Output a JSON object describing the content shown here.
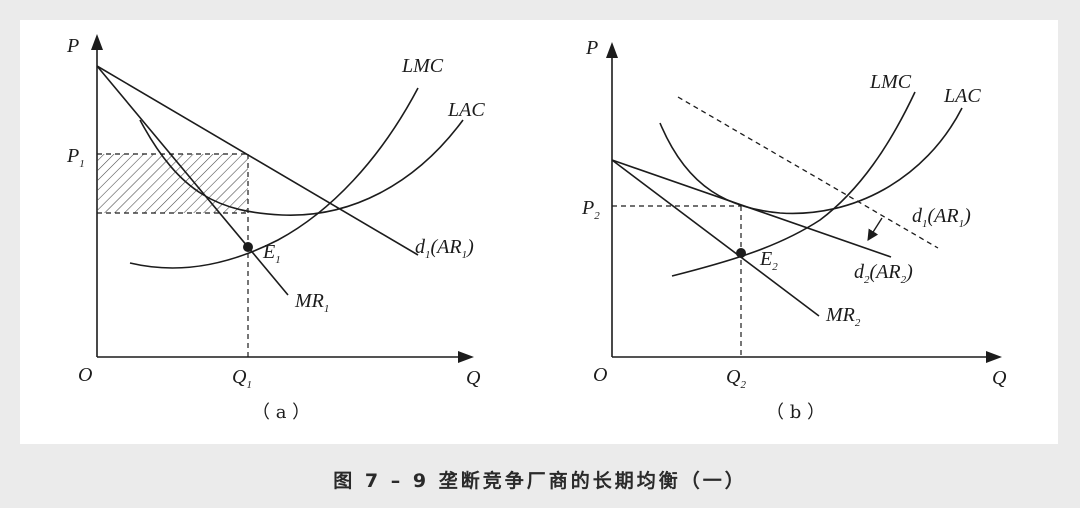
{
  "caption": "图 7 – 9   垄断竞争厂商的长期均衡（一）",
  "panel_a": {
    "sublabel": "（ a ）",
    "y_axis": "P",
    "x_axis": "Q",
    "origin": "O",
    "p_label": {
      "main": "P",
      "sub": "1"
    },
    "q_label": {
      "main": "Q",
      "sub": "1"
    },
    "lmc": "LMC",
    "lac": "LAC",
    "e_label": {
      "main": "E",
      "sub": "1"
    },
    "mr_label": {
      "main": "MR",
      "sub": "1"
    },
    "d_label": {
      "pre": "d",
      "pre_sub": "1",
      "mid": "(",
      "ar": "AR",
      "ar_sub": "1",
      "post": ")"
    }
  },
  "panel_b": {
    "sublabel": "（ b ）",
    "y_axis": "P",
    "x_axis": "Q",
    "origin": "O",
    "p_label": {
      "main": "P",
      "sub": "2"
    },
    "q_label": {
      "main": "Q",
      "sub": "2"
    },
    "lmc": "LMC",
    "lac": "LAC",
    "e_label": {
      "main": "E",
      "sub": "2"
    },
    "mr_label": {
      "main": "MR",
      "sub": "2"
    },
    "d1_label": {
      "pre": "d",
      "pre_sub": "1",
      "mid": "(",
      "ar": "AR",
      "ar_sub": "1",
      "post": ")"
    },
    "d2_label": {
      "pre": "d",
      "pre_sub": "2",
      "mid": "(",
      "ar": "AR",
      "ar_sub": "2",
      "post": ")"
    }
  }
}
